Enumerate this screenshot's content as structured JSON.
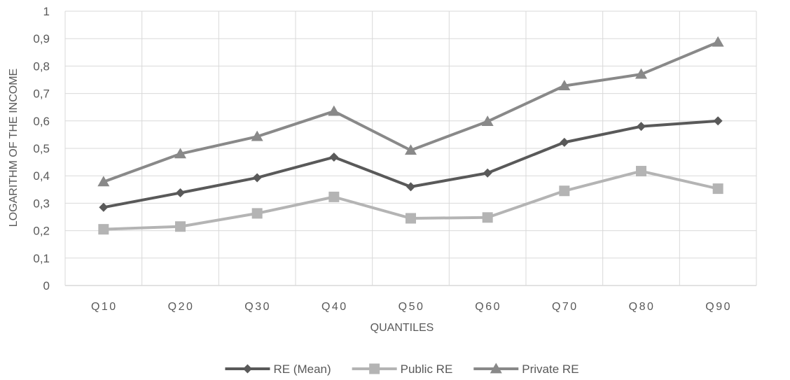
{
  "chart_data": {
    "type": "line",
    "categories": [
      "Q10",
      "Q20",
      "Q30",
      "Q40",
      "Q50",
      "Q60",
      "Q70",
      "Q80",
      "Q90"
    ],
    "xlabel": "QUANTILES",
    "ylabel": "LOGARITHM OF THE INCOME",
    "ylim": [
      0,
      1
    ],
    "yticks": [
      "0",
      "0,1",
      "0,2",
      "0,3",
      "0,4",
      "0,5",
      "0,6",
      "0,7",
      "0,8",
      "0,9",
      "1"
    ],
    "grid": true,
    "legend_position": "bottom",
    "series": [
      {
        "name": "RE (Mean)",
        "color": "#595959",
        "marker": "diamond",
        "values": [
          0.285,
          0.338,
          0.393,
          0.468,
          0.36,
          0.41,
          0.522,
          0.58,
          0.6
        ]
      },
      {
        "name": "Public RE",
        "color": "#b4b4b4",
        "marker": "square",
        "values": [
          0.205,
          0.215,
          0.263,
          0.323,
          0.245,
          0.248,
          0.345,
          0.417,
          0.353
        ]
      },
      {
        "name": "Private RE",
        "color": "#898989",
        "marker": "triangle",
        "values": [
          0.378,
          0.48,
          0.543,
          0.635,
          0.493,
          0.598,
          0.728,
          0.77,
          0.887
        ]
      }
    ]
  }
}
